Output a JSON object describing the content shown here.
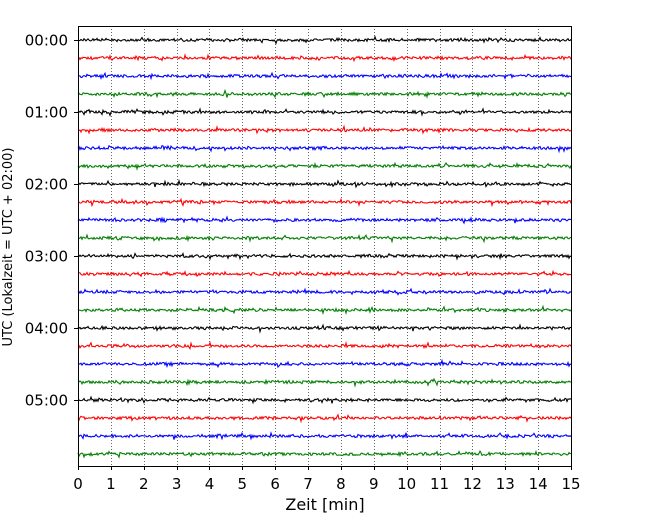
{
  "chart_data": {
    "type": "line",
    "title": "",
    "xlabel": "Zeit  [min]",
    "ylabel": "UTC (Lokalzeit = UTC + 02:00)",
    "xlim": [
      0,
      15
    ],
    "x_ticks": [
      0,
      1,
      2,
      3,
      4,
      5,
      6,
      7,
      8,
      9,
      10,
      11,
      12,
      13,
      14,
      15
    ],
    "x_tick_labels": [
      "0",
      "1",
      "2",
      "3",
      "4",
      "5",
      "6",
      "7",
      "8",
      "9",
      "10",
      "11",
      "12",
      "13",
      "14",
      "15"
    ],
    "y_tick_labels": [
      "00:00",
      "01:00",
      "02:00",
      "03:00",
      "04:00",
      "05:00"
    ],
    "y_tick_hours": [
      0,
      1,
      2,
      3,
      4,
      5
    ],
    "trace_interval_minutes": 15,
    "trace_count": 24,
    "trace_colors": [
      "#000000",
      "#ff0000",
      "#0000ff",
      "#007f00"
    ],
    "vertical_grid": true,
    "grid_style": "dotted",
    "series": [
      {
        "start": "00:00",
        "color": "#000000"
      },
      {
        "start": "00:15",
        "color": "#ff0000"
      },
      {
        "start": "00:30",
        "color": "#0000ff"
      },
      {
        "start": "00:45",
        "color": "#007f00"
      },
      {
        "start": "01:00",
        "color": "#000000"
      },
      {
        "start": "01:15",
        "color": "#ff0000"
      },
      {
        "start": "01:30",
        "color": "#0000ff"
      },
      {
        "start": "01:45",
        "color": "#007f00"
      },
      {
        "start": "02:00",
        "color": "#000000"
      },
      {
        "start": "02:15",
        "color": "#ff0000"
      },
      {
        "start": "02:30",
        "color": "#0000ff"
      },
      {
        "start": "02:45",
        "color": "#007f00"
      },
      {
        "start": "03:00",
        "color": "#000000"
      },
      {
        "start": "03:15",
        "color": "#ff0000"
      },
      {
        "start": "03:30",
        "color": "#0000ff"
      },
      {
        "start": "03:45",
        "color": "#007f00"
      },
      {
        "start": "04:00",
        "color": "#000000"
      },
      {
        "start": "04:15",
        "color": "#ff0000"
      },
      {
        "start": "04:30",
        "color": "#0000ff"
      },
      {
        "start": "04:45",
        "color": "#007f00"
      },
      {
        "start": "05:00",
        "color": "#000000"
      },
      {
        "start": "05:15",
        "color": "#ff0000"
      },
      {
        "start": "05:30",
        "color": "#0000ff"
      },
      {
        "start": "05:45",
        "color": "#007f00"
      }
    ]
  }
}
